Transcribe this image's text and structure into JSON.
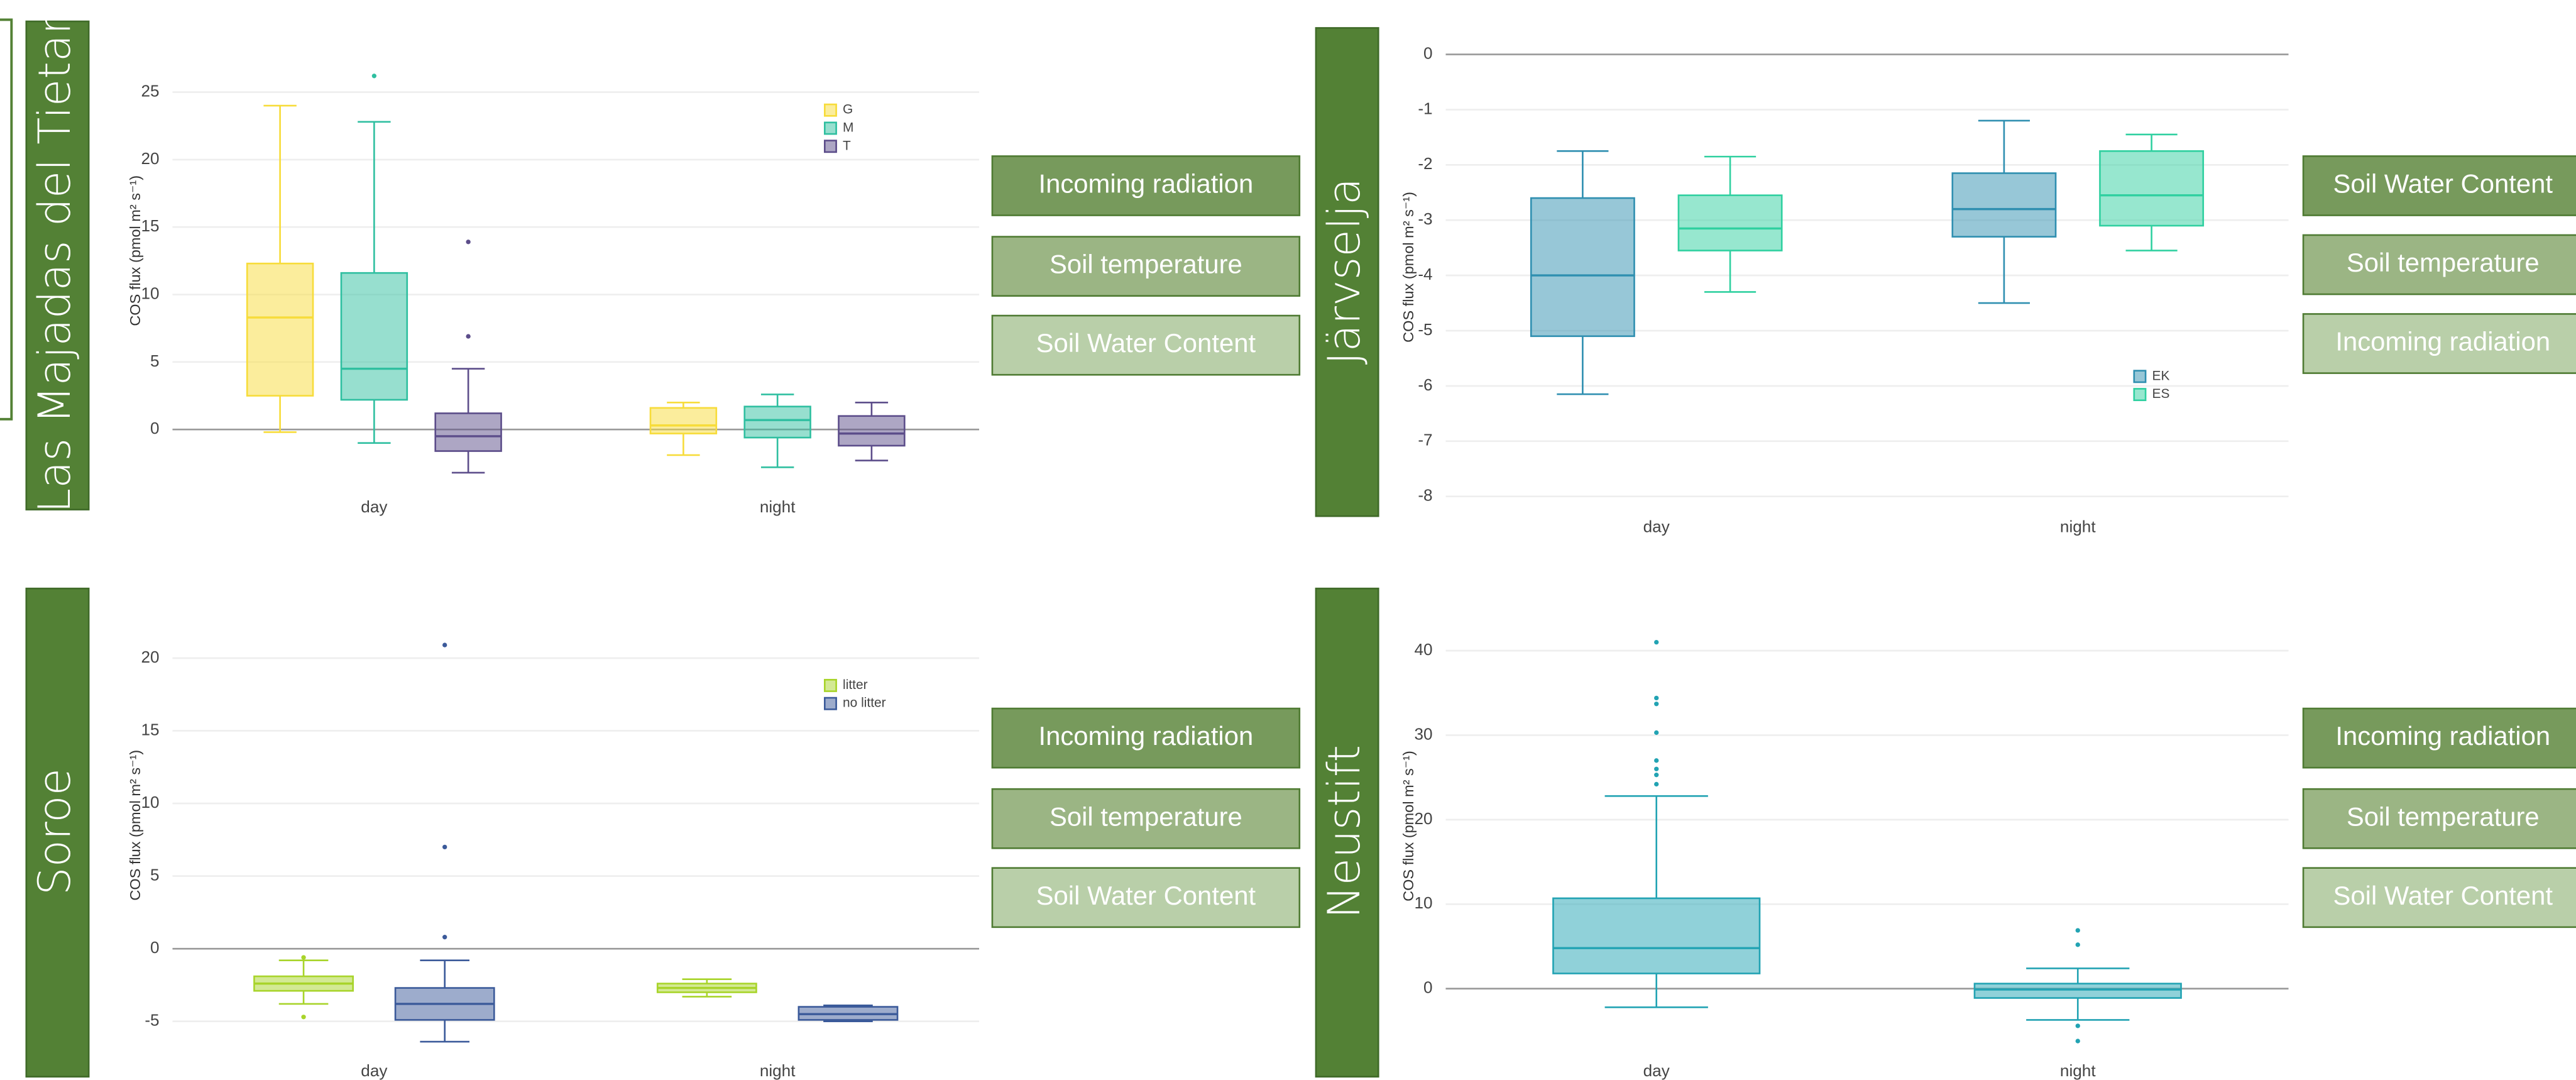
{
  "chart_data": [
    {
      "type": "box",
      "title": "Las Majadas del Tietar",
      "ylabel": "COS flux (pmol m² s⁻¹)",
      "categories": [
        "day",
        "night"
      ],
      "ylim": [
        -3.5,
        30
      ],
      "yticks": [
        0,
        5,
        10,
        15,
        20,
        25
      ],
      "grid": true,
      "legend": "upper right",
      "series": [
        {
          "name": "G",
          "color": "#f7dc3a",
          "values": [
            {
              "min": -0.2,
              "q1": 2.5,
              "median": 8.3,
              "q3": 12.3,
              "max": 24,
              "outliers": []
            },
            {
              "min": -1.9,
              "q1": -0.3,
              "median": 0.3,
              "q3": 1.6,
              "max": 2,
              "outliers": []
            }
          ]
        },
        {
          "name": "M",
          "color": "#2fbfa0",
          "values": [
            {
              "min": -1,
              "q1": 2.2,
              "median": 4.5,
              "q3": 11.6,
              "max": 22.8,
              "outliers": [
                26.2
              ]
            },
            {
              "min": -2.8,
              "q1": -0.6,
              "median": 0.7,
              "q3": 1.7,
              "max": 2.6,
              "outliers": []
            }
          ]
        },
        {
          "name": "T",
          "color": "#5c4d8a",
          "values": [
            {
              "min": -3.2,
              "q1": -1.6,
              "median": -0.5,
              "q3": 1.2,
              "max": 4.5,
              "outliers": [
                13.9,
                6.9
              ]
            },
            {
              "min": -2.3,
              "q1": -1.2,
              "median": -0.3,
              "q3": 1,
              "max": 2,
              "outliers": []
            }
          ]
        }
      ],
      "buttons": [
        "Incoming radiation",
        "Soil temperature",
        "Soil Water Content"
      ]
    },
    {
      "type": "box",
      "title": "Järvselja",
      "ylabel": "COS flux (pmol m² s⁻¹)",
      "categories": [
        "day",
        "night"
      ],
      "ylim": [
        -8,
        0.3
      ],
      "yticks": [
        0,
        -1,
        -2,
        -3,
        -4,
        -5,
        -6,
        -7,
        -8
      ],
      "grid": true,
      "legend": "lower right",
      "series": [
        {
          "name": "EK",
          "color": "#2f8fb0",
          "values": [
            {
              "min": -6.15,
              "q1": -5.1,
              "median": -4,
              "q3": -2.6,
              "max": -1.75,
              "outliers": []
            },
            {
              "min": -4.5,
              "q1": -3.3,
              "median": -2.8,
              "q3": -2.15,
              "max": -1.2,
              "outliers": []
            }
          ]
        },
        {
          "name": "ES",
          "color": "#30d0a0",
          "values": [
            {
              "min": -4.3,
              "q1": -3.55,
              "median": -3.15,
              "q3": -2.55,
              "max": -1.85,
              "outliers": []
            },
            {
              "min": -3.55,
              "q1": -3.1,
              "median": -2.55,
              "q3": -1.75,
              "max": -1.45,
              "outliers": []
            }
          ]
        }
      ],
      "buttons": [
        "Soil Water Content",
        "Soil temperature",
        "Incoming radiation"
      ]
    },
    {
      "type": "box",
      "title": "Soroe",
      "ylabel": "COS flux (pmol m² s⁻¹)",
      "categories": [
        "day",
        "night"
      ],
      "ylim": [
        -7,
        24
      ],
      "yticks": [
        -5,
        0,
        5,
        10,
        15,
        20
      ],
      "grid": true,
      "legend": "upper right",
      "series": [
        {
          "name": "litter",
          "color": "#a8d42a",
          "values": [
            {
              "min": -3.8,
              "q1": -2.9,
              "median": -2.4,
              "q3": -1.9,
              "max": -0.8,
              "outliers": [
                -4.7,
                -0.6
              ]
            },
            {
              "min": -3.3,
              "q1": -3,
              "median": -2.7,
              "q3": -2.4,
              "max": -2.1,
              "outliers": []
            }
          ]
        },
        {
          "name": "no litter",
          "color": "#3b5a9a",
          "values": [
            {
              "min": -6.4,
              "q1": -4.9,
              "median": -3.8,
              "q3": -2.7,
              "max": -0.8,
              "outliers": [
                20.9,
                7,
                0.8
              ]
            },
            {
              "min": -5,
              "q1": -4.9,
              "median": -4.5,
              "q3": -4,
              "max": -3.9,
              "outliers": []
            }
          ]
        }
      ],
      "buttons": [
        "Incoming radiation",
        "Soil temperature",
        "Soil Water Content"
      ]
    },
    {
      "type": "box",
      "title": "Neustift",
      "ylabel": "COS flux (pmol m² s⁻¹)",
      "categories": [
        "day",
        "night"
      ],
      "ylim": [
        -7.5,
        46
      ],
      "yticks": [
        0,
        10,
        20,
        30,
        40
      ],
      "grid": true,
      "series": [
        {
          "color": "#22a3b3",
          "values": [
            {
              "min": -2.2,
              "q1": 1.8,
              "median": 4.8,
              "q3": 10.7,
              "max": 22.8,
              "outliers": [
                24.2,
                25.3,
                26,
                27,
                30.3,
                33.7,
                34.4,
                41
              ]
            },
            {
              "min": -3.7,
              "q1": -1.1,
              "median": -0.1,
              "q3": 0.6,
              "max": 2.4,
              "outliers": [
                5.2,
                6.9,
                -4.4,
                -6.2
              ]
            }
          ]
        }
      ],
      "buttons": [
        "Incoming radiation",
        "Soil temperature",
        "Soil Water Content"
      ]
    }
  ]
}
